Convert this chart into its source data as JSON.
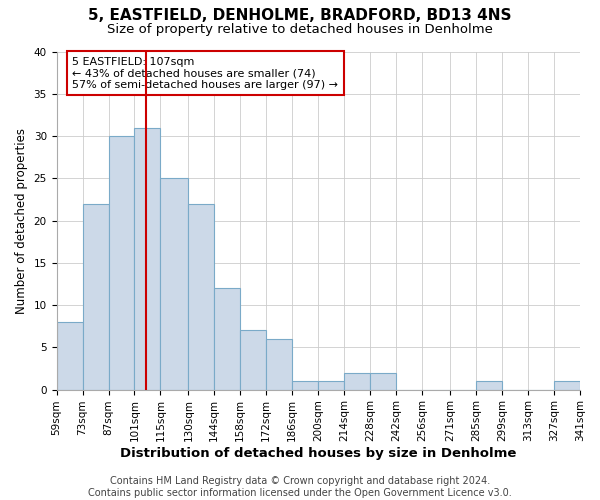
{
  "title": "5, EASTFIELD, DENHOLME, BRADFORD, BD13 4NS",
  "subtitle": "Size of property relative to detached houses in Denholme",
  "xlabel": "Distribution of detached houses by size in Denholme",
  "ylabel": "Number of detached properties",
  "bar_values": [
    8,
    22,
    30,
    31,
    25,
    22,
    12,
    7,
    6,
    1,
    1,
    2,
    2,
    0,
    0,
    0,
    1,
    0,
    0,
    1
  ],
  "bin_edges": [
    59,
    73,
    87,
    101,
    115,
    130,
    144,
    158,
    172,
    186,
    200,
    214,
    228,
    242,
    256,
    271,
    285,
    299,
    313,
    327,
    341
  ],
  "tick_labels": [
    "59sqm",
    "73sqm",
    "87sqm",
    "101sqm",
    "115sqm",
    "130sqm",
    "144sqm",
    "158sqm",
    "172sqm",
    "186sqm",
    "200sqm",
    "214sqm",
    "228sqm",
    "242sqm",
    "256sqm",
    "271sqm",
    "285sqm",
    "299sqm",
    "313sqm",
    "327sqm",
    "341sqm"
  ],
  "bar_color": "#ccd9e8",
  "bar_edge_color": "#7aaac8",
  "bg_color": "#ffffff",
  "plot_bg_color": "#ffffff",
  "grid_color": "#cccccc",
  "vline_x": 107,
  "vline_color": "#cc0000",
  "ylim": [
    0,
    40
  ],
  "yticks": [
    0,
    5,
    10,
    15,
    20,
    25,
    30,
    35,
    40
  ],
  "annotation_lines": [
    "5 EASTFIELD: 107sqm",
    "← 43% of detached houses are smaller (74)",
    "57% of semi-detached houses are larger (97) →"
  ],
  "annotation_box_color": "#cc0000",
  "footer_line1": "Contains HM Land Registry data © Crown copyright and database right 2024.",
  "footer_line2": "Contains public sector information licensed under the Open Government Licence v3.0.",
  "title_fontsize": 11,
  "subtitle_fontsize": 9.5,
  "xlabel_fontsize": 9.5,
  "ylabel_fontsize": 8.5,
  "tick_fontsize": 7.5,
  "annotation_fontsize": 8,
  "footer_fontsize": 7
}
